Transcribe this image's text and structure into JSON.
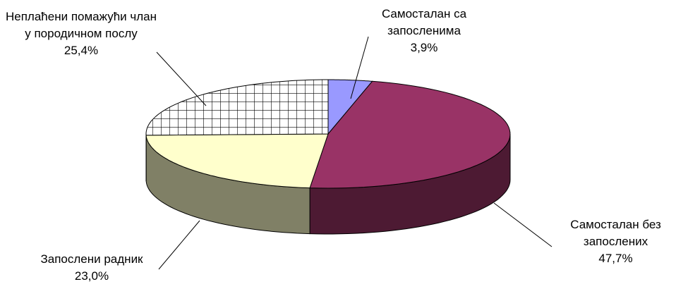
{
  "chart_data": {
    "type": "pie3d",
    "categories": [
      "Самосталан са запосленима",
      "Самосталан без запослених",
      "Запослени радник",
      "Неплаћени помажући члан у породичном послу"
    ],
    "values": [
      3.9,
      47.7,
      23.0,
      25.4
    ],
    "value_labels": [
      "3,9%",
      "47,7%",
      "23,0%",
      "25,4%"
    ],
    "colors": [
      "#9999ff",
      "#993366",
      "#ffffcc",
      "hatch"
    ]
  }
}
